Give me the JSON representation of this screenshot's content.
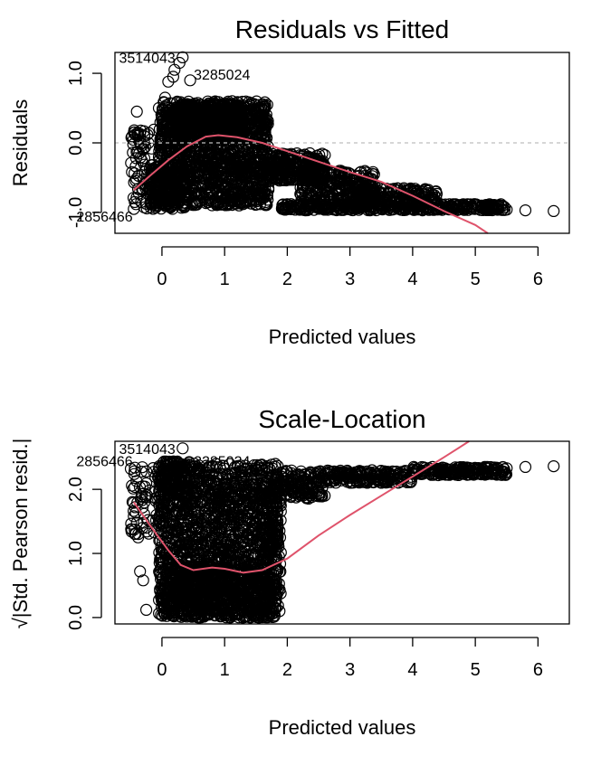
{
  "colors": {
    "points": "#000000",
    "smoother": "#DF536B",
    "reference": "#BEBEBE"
  },
  "chart_data": [
    {
      "type": "scatter",
      "title": "Residuals vs Fitted",
      "xlabel": "Predicted values",
      "ylabel": "Residuals",
      "xlim": [
        -0.75,
        6.5
      ],
      "ylim": [
        -1.3,
        1.3
      ],
      "x_ticks": [
        "0",
        "1",
        "2",
        "3",
        "4",
        "5",
        "6"
      ],
      "y_ticks": [
        "-1.0",
        "0.0",
        "1.0"
      ],
      "y_tick_values": [
        -1.0,
        0.0,
        1.0
      ],
      "reference_line_y": 0.0,
      "point_labels": [
        {
          "text": "3514043",
          "x": 0.33,
          "y": 1.23
        },
        {
          "text": "3285024",
          "x": 0.45,
          "y": 0.99
        },
        {
          "text": "2856466",
          "x": -0.35,
          "y": -1.05
        }
      ],
      "smoother": {
        "x": [
          -0.45,
          -0.2,
          0.1,
          0.4,
          0.7,
          0.9,
          1.2,
          1.6,
          2.0,
          2.5,
          3.0,
          3.5,
          4.0,
          4.5,
          5.0,
          5.2
        ],
        "y": [
          -0.68,
          -0.48,
          -0.25,
          -0.05,
          0.09,
          0.11,
          0.08,
          0.0,
          -0.12,
          -0.27,
          -0.42,
          -0.56,
          -0.76,
          -0.98,
          -1.18,
          -1.3
        ]
      },
      "extra_points": {
        "x": [
          5.2,
          5.35,
          5.5,
          5.8,
          6.25,
          0.33,
          0.28,
          0.2,
          0.18,
          0.1,
          0.45,
          0.05,
          -0.05,
          -0.4,
          -0.38,
          -0.3,
          -0.45
        ],
        "y": [
          -0.95,
          -0.95,
          -0.96,
          -0.97,
          -0.98,
          1.23,
          1.15,
          1.05,
          0.95,
          0.88,
          0.9,
          0.65,
          0.5,
          0.45,
          0.1,
          -0.1,
          -0.95
        ]
      }
    },
    {
      "type": "scatter",
      "title": "Scale-Location",
      "xlabel": "Predicted values",
      "ylabel": "√|Std. Pearson resid.|",
      "xlim": [
        -0.75,
        6.5
      ],
      "ylim": [
        -0.1,
        2.75
      ],
      "x_ticks": [
        "0",
        "1",
        "2",
        "3",
        "4",
        "5",
        "6"
      ],
      "y_ticks": [
        "0.0",
        "1.0",
        "2.0"
      ],
      "y_tick_values": [
        0.0,
        1.0,
        2.0
      ],
      "point_labels": [
        {
          "text": "3514043",
          "x": 0.33,
          "y": 2.64
        },
        {
          "text": "3285024",
          "x": 0.45,
          "y": 2.45
        },
        {
          "text": "2856466",
          "x": -0.35,
          "y": 2.45
        }
      ],
      "smoother": {
        "x": [
          -0.45,
          -0.2,
          0.1,
          0.3,
          0.5,
          0.8,
          1.0,
          1.3,
          1.6,
          2.0,
          2.5,
          3.0,
          3.5,
          4.0,
          4.5,
          4.9
        ],
        "y": [
          1.8,
          1.45,
          1.05,
          0.82,
          0.74,
          0.78,
          0.76,
          0.7,
          0.74,
          0.92,
          1.28,
          1.6,
          1.9,
          2.2,
          2.5,
          2.75
        ]
      },
      "extra_points": {
        "x": [
          5.2,
          5.35,
          5.5,
          5.8,
          6.25,
          0.33,
          -0.4,
          -0.45,
          -0.38,
          -0.35,
          -0.3,
          -0.25,
          2.5,
          2.0,
          1.8
        ],
        "y": [
          2.32,
          2.33,
          2.33,
          2.35,
          2.36,
          2.64,
          1.48,
          1.58,
          1.25,
          0.72,
          0.58,
          0.12,
          2.2,
          2.28,
          1.82
        ]
      }
    }
  ]
}
